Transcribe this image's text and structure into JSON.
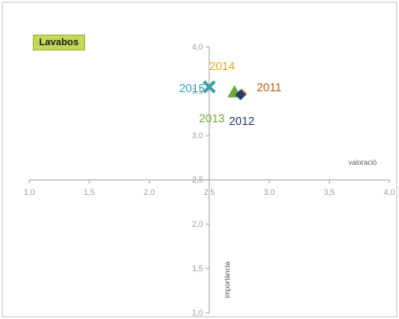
{
  "chart_data": {
    "type": "scatter",
    "title": "Lavabos",
    "xlabel": "valoració",
    "ylabel": "importància",
    "xlim": [
      1.0,
      4.0
    ],
    "ylim": [
      1.0,
      4.0
    ],
    "x_cross": 2.5,
    "y_cross": 2.5,
    "x_ticks": [
      "1,0",
      "1,5",
      "2,0",
      "2,5",
      "3,0",
      "3,5",
      "4,0"
    ],
    "y_ticks": [
      "1,0",
      "1,5",
      "2,0",
      "2,5",
      "3,0",
      "3,5",
      "4,0"
    ],
    "grid": false,
    "points": [
      {
        "label": "2011",
        "x": 2.77,
        "y": 3.47,
        "marker": "diamond",
        "color": "#c55a11"
      },
      {
        "label": "2012",
        "x": 2.76,
        "y": 3.46,
        "marker": "diamond",
        "color": "#1f3c73"
      },
      {
        "label": "2013",
        "x": 2.71,
        "y": 3.48,
        "marker": "triangle",
        "color": "#70a83a"
      },
      {
        "label": "2014",
        "x": 2.5,
        "y": 3.55,
        "marker": "x",
        "color": "#e6a824"
      },
      {
        "label": "2015",
        "x": 2.5,
        "y": 3.55,
        "marker": "x",
        "color": "#3a9fb1"
      }
    ]
  }
}
